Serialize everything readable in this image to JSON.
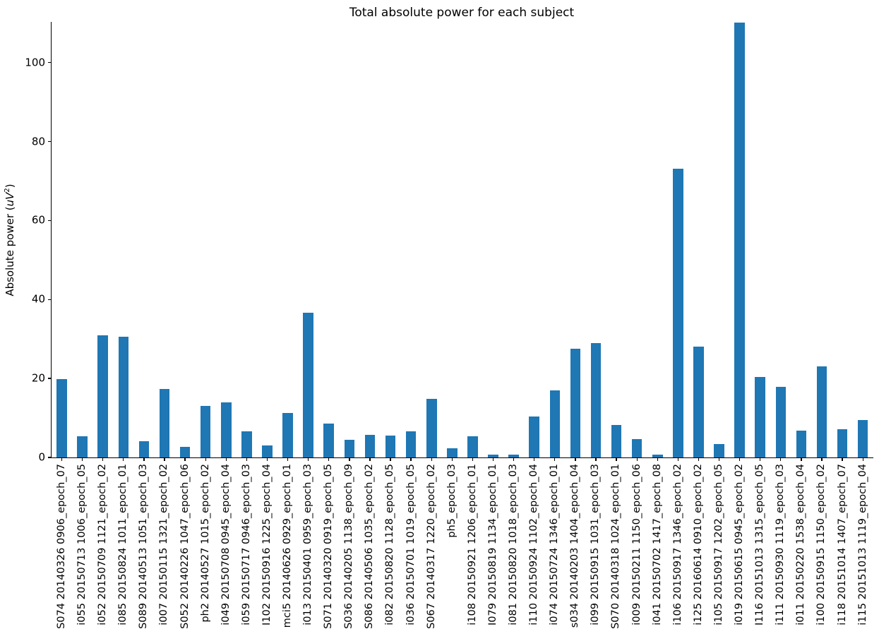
{
  "figure": {
    "title": "Total absolute power for each subject",
    "ylabel": {
      "prefix": "Absolute power (",
      "math": "uV",
      "sup": "2",
      "suffix": ")"
    },
    "background": "#ffffff",
    "bar_color": "#1f77b4",
    "axis_color": "#000000",
    "text_color": "#000000"
  },
  "chart_data": {
    "type": "bar",
    "title": "Total absolute power for each subject",
    "xlabel": "",
    "ylabel": "Absolute power (uV²)",
    "bar_color": "#1f77b4",
    "grid": false,
    "legend": false,
    "ylim": [
      0,
      110.3
    ],
    "yticks": [
      0,
      20,
      40,
      60,
      80,
      100
    ],
    "categories": [
      "S074 20140326 0906_epoch_07",
      "i055 20150713 1006_epoch_05",
      "i052 20150709 1121_epoch_02",
      "i085 20150824 1011_epoch_01",
      "S089 20140513 1051_epoch_03",
      "i007 20150115 1321_epoch_02",
      "S052 20140226 1047_epoch_06",
      "ph2 20140527 1015_epoch_02",
      "i049 20150708 0945_epoch_04",
      "i059 20150717 0946_epoch_03",
      "I102 20150916 1225_epoch_04",
      "mci5 20140626 0929_epoch_01",
      "i013 20150401 0959_epoch_03",
      "S071 20140320 0919_epoch_05",
      "S036 20140205 1138_epoch_09",
      "S086 20140506 1035_epoch_02",
      "i082 20150820 1128_epoch_05",
      "i036 20150701 1019_epoch_05",
      "S067 20140317 1220_epoch_02",
      "ph5_epoch_03",
      "i108 20150921 1206_epoch_01",
      "I079 20150819 1134_epoch_01",
      "i081 20150820 1018_epoch_03",
      "i110 20150924 1102_epoch_04",
      "i074 20150724 1346_epoch_01",
      "s034 20140203 1404_epoch_04",
      "i099 20150915 1031_epoch_03",
      "S070 20140318 1024_epoch_01",
      "i009 20150211 1150_epoch_06",
      "i041 20150702 1417_epoch_08",
      "i106 20150917 1346_epoch_02",
      "i125 20160614 0910_epoch_02",
      "i105 20150917 1202_epoch_05",
      "i019 20150615 0945_epoch_02",
      "I116 20151013 1315_epoch_05",
      "i111 20150930 1119_epoch_03",
      "i011 20150220 1538_epoch_04",
      "i100 20150915 1150_epoch_02",
      "i118 20151014 1407_epoch_07",
      "i115 20151013 1119_epoch_04"
    ],
    "values": [
      19.9,
      5.3,
      31.0,
      30.6,
      4.2,
      17.4,
      2.7,
      13.0,
      14.0,
      6.6,
      3.0,
      11.2,
      36.7,
      8.5,
      4.4,
      5.7,
      5.6,
      6.6,
      14.9,
      2.4,
      5.3,
      0.8,
      0.8,
      10.3,
      16.9,
      27.5,
      28.9,
      8.3,
      4.6,
      0.7,
      73.2,
      28.1,
      3.4,
      110.2,
      20.4,
      17.9,
      6.8,
      23.0,
      7.2,
      9.5
    ]
  }
}
